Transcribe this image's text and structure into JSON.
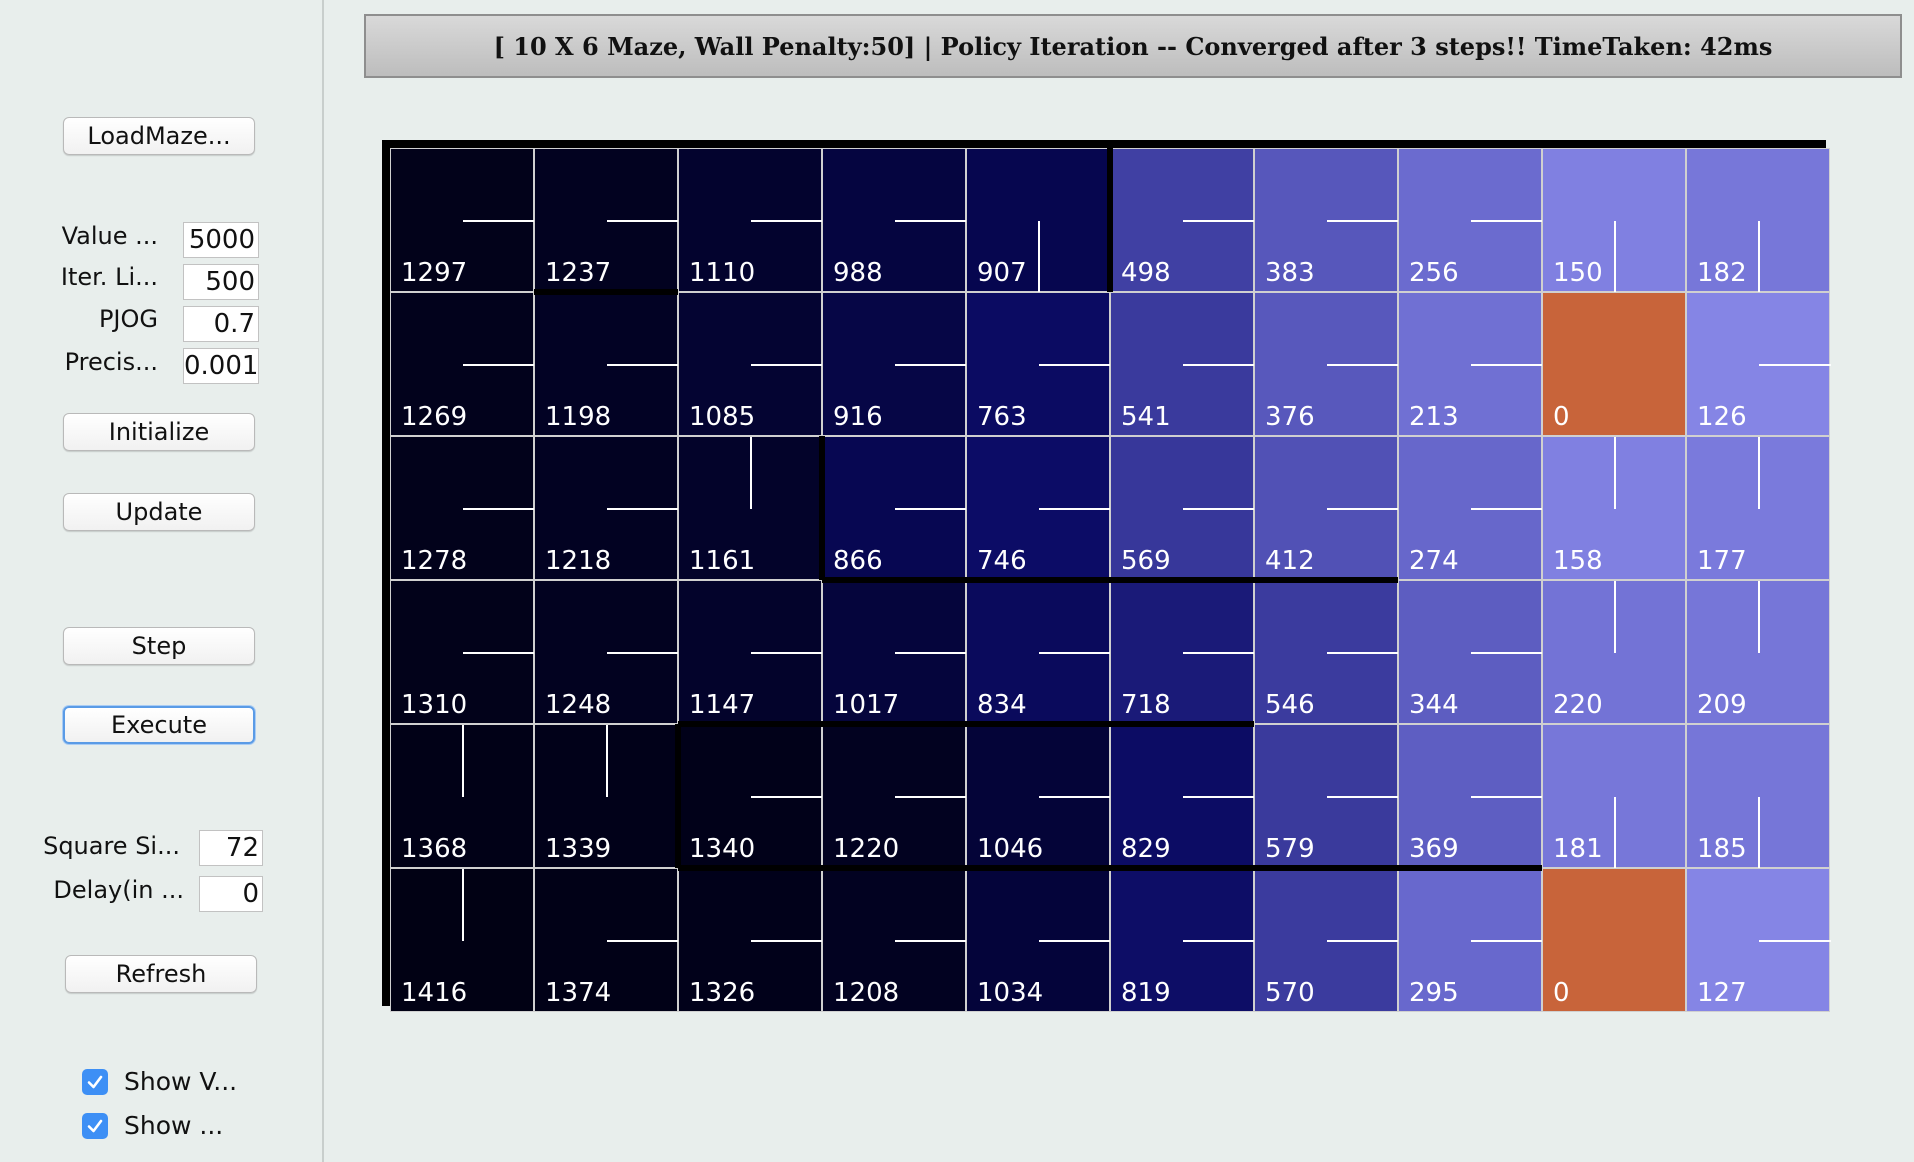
{
  "sidebar": {
    "load_button": "LoadMaze...",
    "fields": [
      {
        "label": "Value ...",
        "value": "5000"
      },
      {
        "label": "Iter. Li...",
        "value": "500"
      },
      {
        "label": "PJOG",
        "value": "0.7"
      },
      {
        "label": "Precis...",
        "value": "0.001"
      }
    ],
    "initialize_button": "Initialize",
    "update_button": "Update",
    "step_button": "Step",
    "execute_button": "Execute",
    "square_size": {
      "label": "Square Si...",
      "value": "72"
    },
    "delay": {
      "label": "Delay(in ...",
      "value": "0"
    },
    "refresh_button": "Refresh",
    "checks": [
      {
        "label": "Show V...",
        "checked": true
      },
      {
        "label": "Show ...",
        "checked": true
      }
    ]
  },
  "status": {
    "title": "[ 10 X 6 Maze, Wall Penalty:50] |  Policy Iteration -- Converged after 3 steps!! TimeTaken: 42ms"
  },
  "colors": {
    "goal": "#c8643a",
    "check_blue": "#3d8ff5"
  },
  "maze": {
    "cols": 10,
    "rows": 6,
    "values": [
      [
        1297,
        1237,
        1110,
        988,
        907,
        498,
        383,
        256,
        150,
        182
      ],
      [
        1269,
        1198,
        1085,
        916,
        763,
        541,
        376,
        213,
        0,
        126
      ],
      [
        1278,
        1218,
        1161,
        866,
        746,
        569,
        412,
        274,
        158,
        177
      ],
      [
        1310,
        1248,
        1147,
        1017,
        834,
        718,
        546,
        344,
        220,
        209
      ],
      [
        1368,
        1339,
        1340,
        1220,
        1046,
        829,
        579,
        369,
        181,
        185
      ],
      [
        1416,
        1374,
        1326,
        1208,
        1034,
        819,
        570,
        295,
        0,
        127
      ]
    ],
    "policy": [
      [
        "E",
        "E",
        "E",
        "E",
        "S",
        "E",
        "E",
        "E",
        "S",
        "S"
      ],
      [
        "E",
        "E",
        "E",
        "E",
        "E",
        "E",
        "E",
        "E",
        "G",
        "E"
      ],
      [
        "E",
        "E",
        "N",
        "E",
        "E",
        "E",
        "E",
        "E",
        "N",
        "N"
      ],
      [
        "E",
        "E",
        "E",
        "E",
        "E",
        "E",
        "E",
        "E",
        "N",
        "N"
      ],
      [
        "N",
        "N",
        "E",
        "E",
        "E",
        "E",
        "E",
        "E",
        "S",
        "S"
      ],
      [
        "N",
        "E",
        "E",
        "E",
        "E",
        "E",
        "E",
        "E",
        "G",
        "E"
      ]
    ],
    "cell_colors": [
      [
        "#02021a",
        "#020220",
        "#03032e",
        "#050540",
        "#06064f",
        "#4040a3",
        "#5757bb",
        "#6b6bcf",
        "#8080e1",
        "#7777d9"
      ],
      [
        "#02021c",
        "#020224",
        "#040432",
        "#060646",
        "#0b0b62",
        "#3a3a9d",
        "#5858bc",
        "#7070d3",
        "goal",
        "#8585e5"
      ],
      [
        "#02021b",
        "#020222",
        "#03032a",
        "#070752",
        "#0c0c66",
        "#37379a",
        "#5151b5",
        "#6767cb",
        "#8080e1",
        "#7a7adc"
      ],
      [
        "#02021a",
        "#020220",
        "#03032b",
        "#05053c",
        "#0a0a5c",
        "#1a1a78",
        "#3b3b9e",
        "#5d5dc1",
        "#7373d6",
        "#7676d8"
      ],
      [
        "#010117",
        "#010119",
        "#010119",
        "#020220",
        "#040438",
        "#0c0c64",
        "#3a3a9c",
        "#5e5ec2",
        "#7777d9",
        "#7676d8"
      ],
      [
        "#010114",
        "#010117",
        "#01011a",
        "#020221",
        "#04043a",
        "#0d0d66",
        "#3b3b9e",
        "#6868cd",
        "goal",
        "#8585e5"
      ]
    ]
  }
}
